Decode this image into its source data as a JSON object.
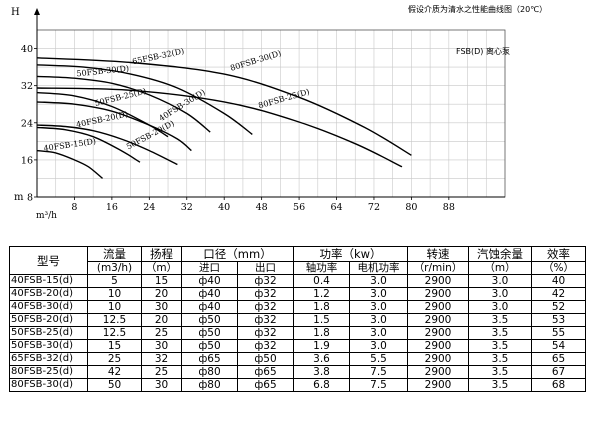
{
  "chart_data": {
    "type": "line",
    "title": "",
    "note": "假设介质为清水之性能曲线图（20℃）",
    "legend_label": "FSB(D) 离心泵",
    "ylabel": "H",
    "ylabel_unit": "m",
    "xlabel": "m³/h",
    "xlim": [
      0,
      100
    ],
    "ylim": [
      8,
      44
    ],
    "xticks": [
      8,
      16,
      24,
      32,
      40,
      48,
      56,
      64,
      72,
      80,
      88
    ],
    "yticks": [
      8,
      16,
      24,
      32,
      40
    ],
    "grid": true,
    "series": [
      {
        "name": "40FSB-15(D)",
        "x": [
          0,
          4,
          8,
          11,
          14
        ],
        "y": [
          18,
          17.5,
          16,
          14.5,
          12
        ]
      },
      {
        "name": "40FSB-20(D)",
        "x": [
          0,
          6,
          12,
          18,
          22
        ],
        "y": [
          23,
          22.5,
          21,
          18,
          15.5
        ]
      },
      {
        "name": "50FSB-20(D)",
        "x": [
          0,
          6,
          12,
          18,
          24,
          30
        ],
        "y": [
          23.5,
          23.2,
          22.3,
          20.5,
          18,
          15
        ]
      },
      {
        "name": "40FSB-30(D)",
        "x": [
          0,
          8,
          16,
          24,
          28
        ],
        "y": [
          30.5,
          29.8,
          27.5,
          23.5,
          21
        ]
      },
      {
        "name": "50FSB-25(D)",
        "x": [
          0,
          8,
          16,
          24,
          30,
          33
        ],
        "y": [
          28.5,
          28,
          26.5,
          23.5,
          20.5,
          18
        ]
      },
      {
        "name": "50FSB-30(D)",
        "x": [
          0,
          8,
          16,
          24,
          32,
          37
        ],
        "y": [
          34,
          33.6,
          32.5,
          30,
          26,
          22
        ]
      },
      {
        "name": "65FSB-32(D)",
        "x": [
          0,
          10,
          20,
          30,
          40,
          46
        ],
        "y": [
          36.5,
          36,
          34.5,
          31.5,
          26,
          21.5
        ]
      },
      {
        "name": "80FSB-25(D)",
        "x": [
          0,
          20,
          40,
          55,
          68,
          78
        ],
        "y": [
          31.5,
          31,
          28.5,
          24.5,
          19.5,
          14.5
        ]
      },
      {
        "name": "80FSB-30(D)",
        "x": [
          0,
          20,
          40,
          56,
          70,
          80
        ],
        "y": [
          38,
          37,
          34.5,
          29.5,
          23,
          17
        ]
      }
    ]
  },
  "table": {
    "headers_top": [
      "型号",
      "流量",
      "扬程",
      "口径（mm）",
      "功率（kw）",
      "转速",
      "汽蚀余量",
      "效率"
    ],
    "headers_units": [
      "(m3/h)",
      "（m）",
      "（r/min）",
      "（m）",
      "（%）"
    ],
    "headers_sub": [
      "进口",
      "出口",
      "轴功率",
      "电机功率"
    ],
    "rows": [
      [
        "40FSB-15(d)",
        "5",
        "15",
        "ф40",
        "ф32",
        "0.4",
        "3.0",
        "2900",
        "3.0",
        "40"
      ],
      [
        "40FSB-20(d)",
        "10",
        "20",
        "ф40",
        "ф32",
        "1.2",
        "3.0",
        "2900",
        "3.0",
        "42"
      ],
      [
        "40FSB-30(d)",
        "10",
        "30",
        "ф40",
        "ф32",
        "1.8",
        "3.0",
        "2900",
        "3.0",
        "52"
      ],
      [
        "50FSB-20(d)",
        "12.5",
        "20",
        "ф50",
        "ф32",
        "1.5",
        "3.0",
        "2900",
        "3.5",
        "53"
      ],
      [
        "50FSB-25(d)",
        "12.5",
        "25",
        "ф50",
        "ф32",
        "1.8",
        "3.0",
        "2900",
        "3.5",
        "55"
      ],
      [
        "50FSB-30(d)",
        "15",
        "30",
        "ф50",
        "ф32",
        "1.9",
        "3.0",
        "2900",
        "3.5",
        "54"
      ],
      [
        "65FSB-32(d)",
        "25",
        "32",
        "ф65",
        "ф50",
        "3.6",
        "5.5",
        "2900",
        "3.5",
        "65"
      ],
      [
        "80FSB-25(d)",
        "42",
        "25",
        "ф80",
        "ф65",
        "3.8",
        "7.5",
        "2900",
        "3.5",
        "67"
      ],
      [
        "80FSB-30(d)",
        "50",
        "30",
        "ф80",
        "ф65",
        "6.8",
        "7.5",
        "2900",
        "3.5",
        "68"
      ]
    ]
  }
}
